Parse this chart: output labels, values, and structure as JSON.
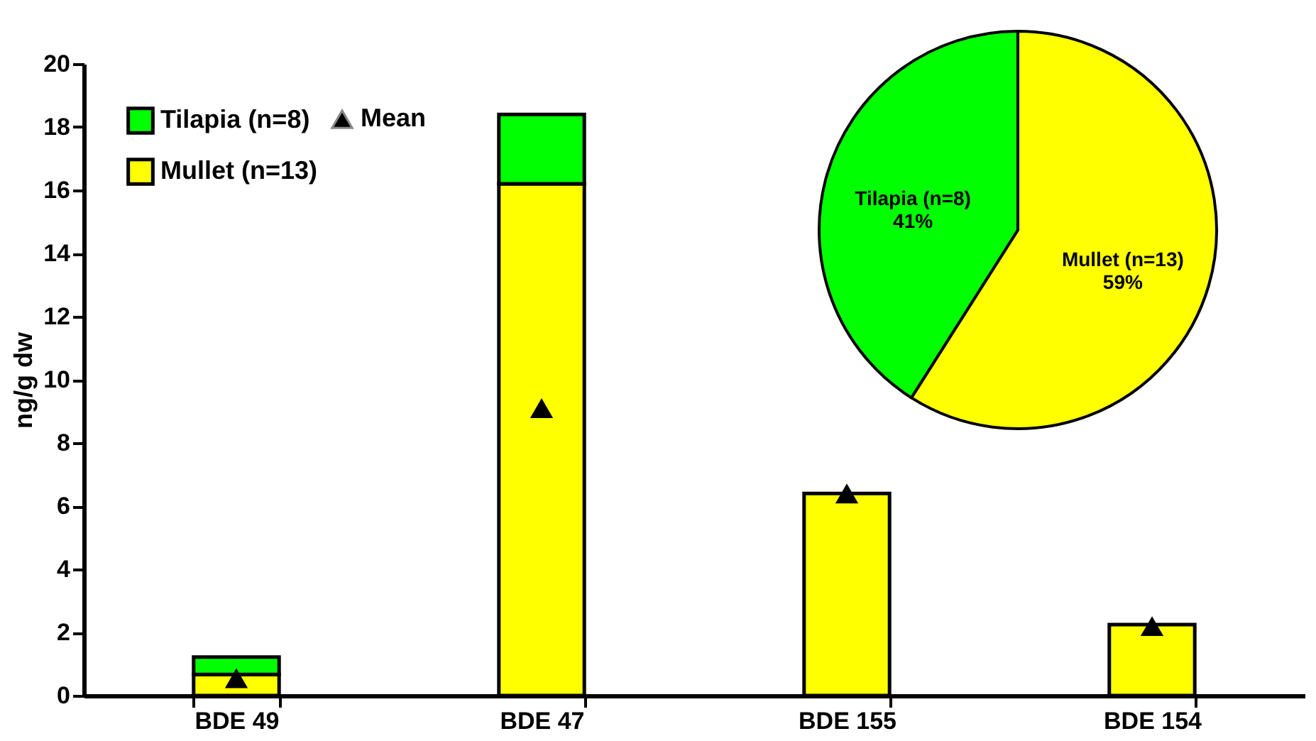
{
  "chart_data": [
    {
      "type": "bar",
      "stacked": true,
      "categories": [
        "BDE 49",
        "BDE 47",
        "BDE 155",
        "BDE 154"
      ],
      "ylabel": "ng/g dw",
      "ylim": [
        0,
        20
      ],
      "yticks": [
        0,
        2,
        4,
        6,
        8,
        10,
        12,
        14,
        16,
        18,
        20
      ],
      "grid": false,
      "legend": "top left",
      "series": [
        {
          "name": "Mullet (n=13)",
          "color": "#ffff00",
          "values": [
            0.67,
            16.2,
            6.4,
            2.25
          ]
        },
        {
          "name": "Tilapia (n=8)",
          "color": "#00ff00",
          "values": [
            0.55,
            2.2,
            null,
            null
          ]
        },
        {
          "name": "Mean",
          "type": "scatter",
          "marker": "triangle",
          "color": "#000000",
          "values": [
            0.55,
            9.1,
            6.4,
            2.2
          ]
        }
      ]
    },
    {
      "type": "pie",
      "categories": [
        "Mullet (n=13)",
        "Tilapia (n=8)"
      ],
      "values": [
        59,
        41
      ],
      "colors": [
        "#ffff00",
        "#00ff00"
      ],
      "value_labels": [
        "59%",
        "41%"
      ]
    }
  ]
}
